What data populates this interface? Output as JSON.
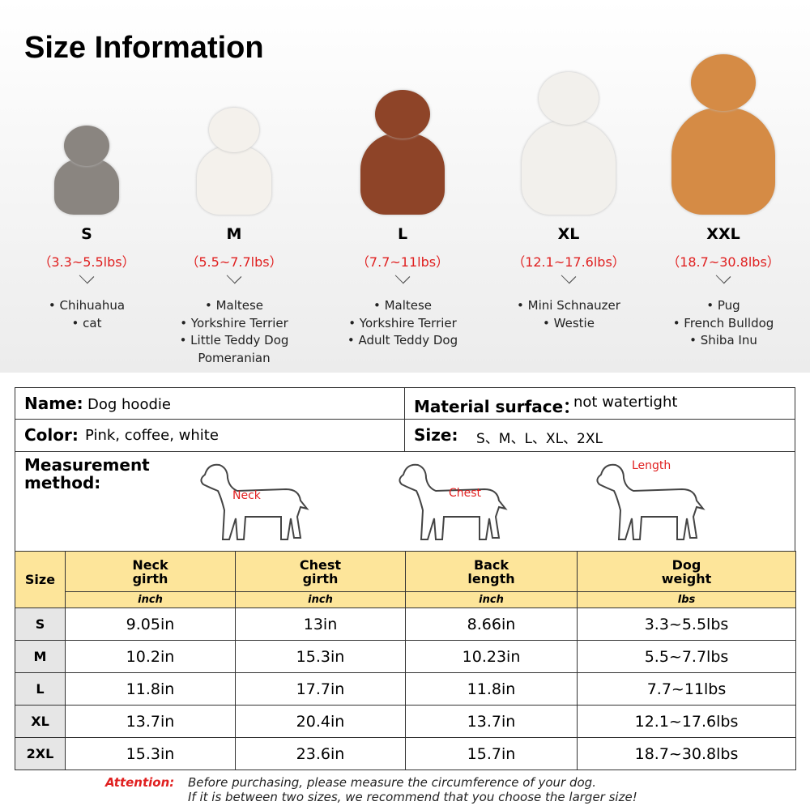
{
  "title": "Size Information",
  "sizes": [
    {
      "size": "S",
      "weight": "（3.3~5.5lbs）",
      "breeds": [
        "• Chihuahua",
        "• cat"
      ]
    },
    {
      "size": "M",
      "weight": "（5.5~7.7lbs）",
      "breeds": [
        "• Maltese",
        "• Yorkshire Terrier",
        "• Little Teddy Dog",
        "Pomeranian"
      ]
    },
    {
      "size": "L",
      "weight": "（7.7~11lbs）",
      "breeds": [
        "• Maltese",
        "• Yorkshire Terrier",
        "• Adult Teddy Dog"
      ]
    },
    {
      "size": "XL",
      "weight": "（12.1~17.6lbs）",
      "breeds": [
        "• Mini Schnauzer",
        "• Westie"
      ]
    },
    {
      "size": "XXL",
      "weight": "（18.7~30.8lbs）",
      "breeds": [
        "• Pug",
        "• French Bulldog",
        "• Shiba Inu"
      ]
    }
  ],
  "info": {
    "name_label": "Name:",
    "name": "Dog hoodie",
    "material_label": "Material surface：",
    "material": "not watertight",
    "color_label": "Color:",
    "color": "Pink, coffee, white",
    "size_label": "Size:",
    "size": "S、M、L、XL、2XL"
  },
  "measurement": {
    "label": "Measurement method:",
    "labels": [
      "Neck",
      "Chest",
      "Length"
    ]
  },
  "table": {
    "header": [
      "Size",
      "Neck girth",
      "Chest girth",
      "Back length",
      "Dog weight"
    ],
    "units": [
      "inch",
      "inch",
      "inch",
      "lbs"
    ],
    "rows": [
      [
        "S",
        "9.05in",
        "13in",
        "8.66in",
        "3.3~5.5lbs"
      ],
      [
        "M",
        "10.2in",
        "15.3in",
        "10.23in",
        "5.5~7.7lbs"
      ],
      [
        "L",
        "11.8in",
        "17.7in",
        "11.8in",
        "7.7~11lbs"
      ],
      [
        "XL",
        "13.7in",
        "20.4in",
        "13.7in",
        "12.1~17.6lbs"
      ],
      [
        "2XL",
        "15.3in",
        "23.6in",
        "15.7in",
        "18.7~30.8lbs"
      ]
    ]
  },
  "attention": {
    "label": "Attention:",
    "lines": [
      "Before purchasing, please measure the circumference of your dog.",
      "If it is between two sizes, we recommend that you choose the larger size!"
    ]
  }
}
